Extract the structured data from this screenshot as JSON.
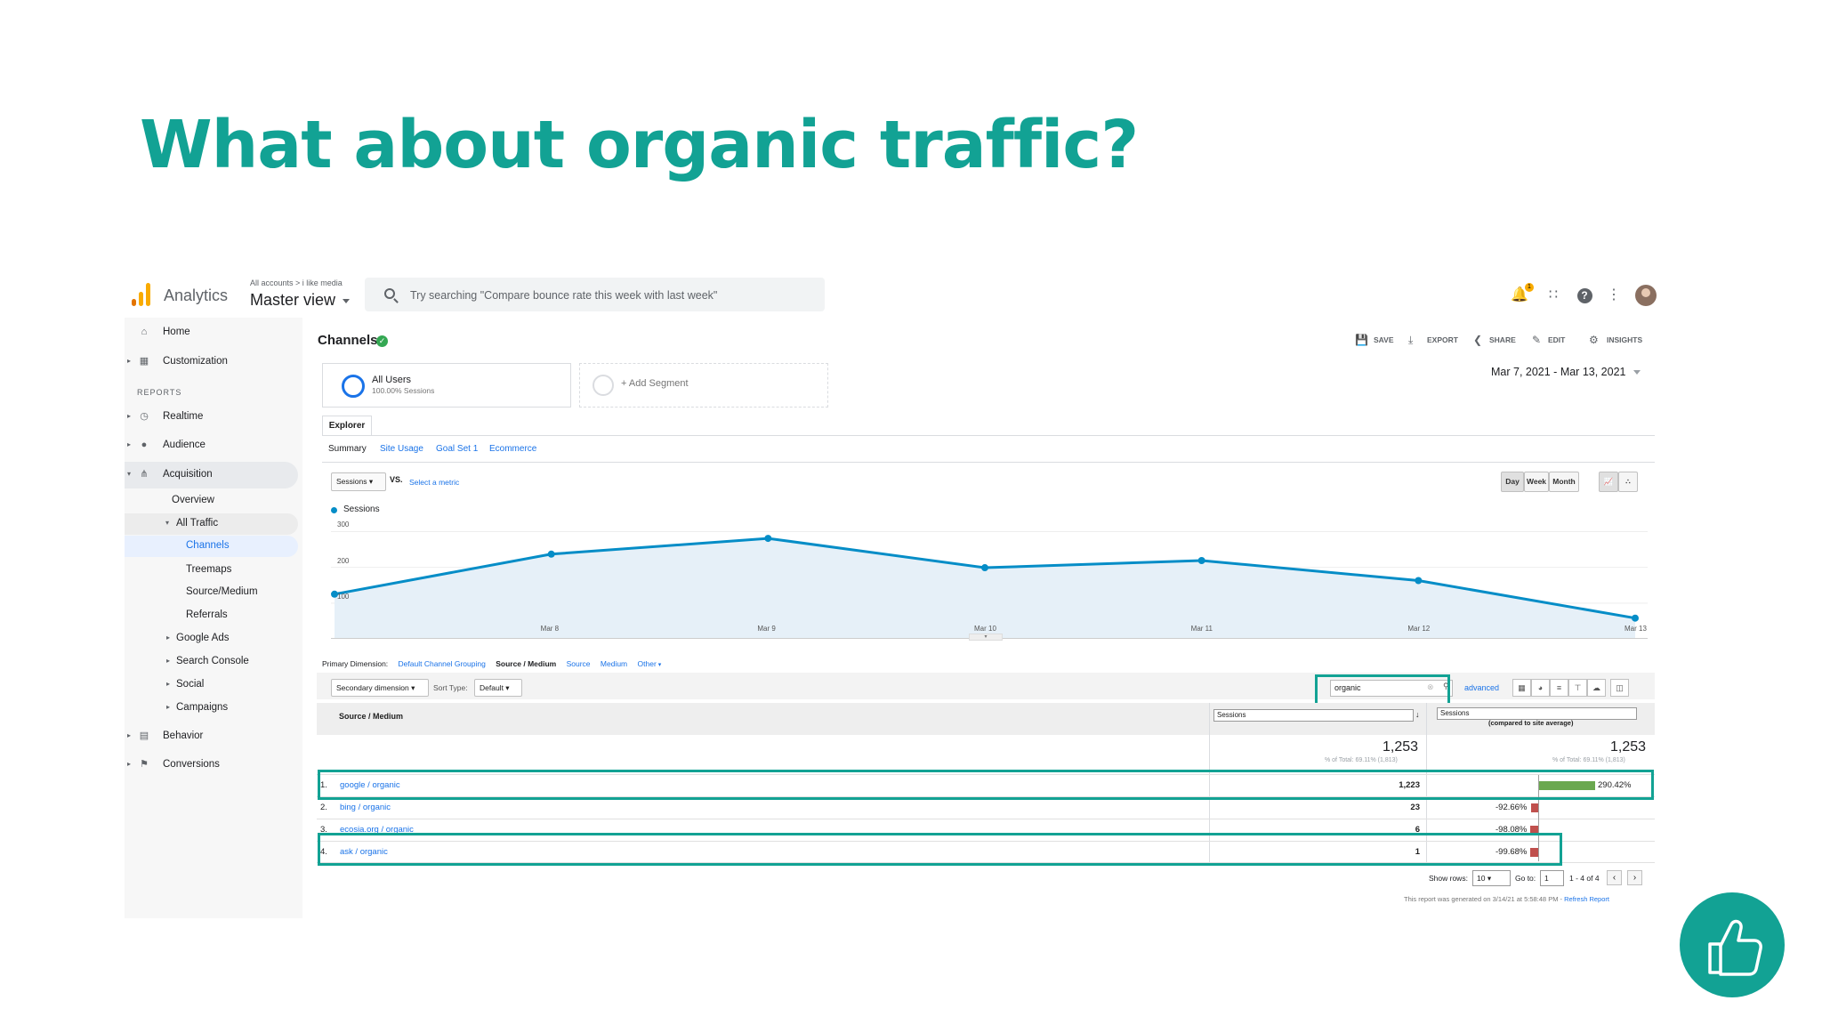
{
  "slide": {
    "title": "What about organic traffic?",
    "accent_color": "#12a294",
    "reaction_icon": "thumbs-up-icon"
  },
  "app": {
    "name": "Analytics",
    "breadcrumb": "All accounts > i like media",
    "view": "Master view",
    "search_placeholder": "Try searching \"Compare bounce rate this week with last week\"",
    "notification_count": "1",
    "icons": [
      "bell-icon",
      "apps-grid-icon",
      "help-icon",
      "more-vert-icon",
      "avatar"
    ]
  },
  "sidebar": {
    "items": [
      {
        "label": "Home",
        "icon": "home-icon"
      },
      {
        "label": "Customization",
        "icon": "dashboard-icon"
      }
    ],
    "section_label": "REPORTS",
    "reports": [
      {
        "label": "Realtime",
        "icon": "clock-icon"
      },
      {
        "label": "Audience",
        "icon": "person-icon"
      },
      {
        "label": "Acquisition",
        "icon": "acquisition-icon"
      }
    ],
    "acquisition_children": {
      "overview": "Overview",
      "all_traffic": "All Traffic",
      "channels": "Channels",
      "treemaps": "Treemaps",
      "source_medium": "Source/Medium",
      "referrals": "Referrals",
      "google_ads": "Google Ads",
      "search_console": "Search Console",
      "social": "Social",
      "campaigns": "Campaigns"
    },
    "behavior": "Behavior",
    "conversions": "Conversions"
  },
  "page": {
    "title": "Channels",
    "actions": {
      "save": "SAVE",
      "export": "EXPORT",
      "share": "SHARE",
      "edit": "EDIT",
      "insights": "INSIGHTS"
    },
    "segment": {
      "name": "All Users",
      "sub": "100.00% Sessions",
      "add": "+ Add Segment"
    },
    "date_range": "Mar 7, 2021 - Mar 13, 2021",
    "tab": "Explorer",
    "subtabs": [
      "Summary",
      "Site Usage",
      "Goal Set 1",
      "Ecommerce"
    ],
    "metric": "Sessions",
    "vs": "VS.",
    "select_metric": "Select a metric",
    "granularity": [
      "Day",
      "Week",
      "Month"
    ]
  },
  "chart_data": {
    "type": "area",
    "series": [
      {
        "name": "Sessions",
        "values": [
          125,
          237,
          281,
          199,
          219,
          163,
          58
        ]
      }
    ],
    "x": [
      "",
      "Mar 8",
      "Mar 9",
      "Mar 10",
      "Mar 11",
      "Mar 12",
      "Mar 13"
    ],
    "yticks": [
      "300",
      "200",
      "100"
    ],
    "ylim": [
      0,
      300
    ],
    "color": "#058dc7",
    "fill": "#e6f0f8"
  },
  "table": {
    "primary_dimension_label": "Primary Dimension:",
    "dimensions": [
      "Default Channel Grouping",
      "Source / Medium",
      "Source",
      "Medium",
      "Other"
    ],
    "secondary_dimension": "Secondary dimension",
    "sort_type_label": "Sort Type:",
    "sort_type": "Default",
    "filter_value": "organic",
    "advanced": "advanced",
    "dim_header": "Source / Medium",
    "metric_header": "Sessions",
    "compare_header": "Sessions",
    "compare_note": "(compared to site average)",
    "total": "1,253",
    "total_sub": "% of Total: 69.11% (1,813)",
    "rows": [
      {
        "n": "1.",
        "source": "google / organic",
        "sessions": "1,223",
        "pct": "290.42%",
        "pct_value": 290.42
      },
      {
        "n": "2.",
        "source": "bing / organic",
        "sessions": "23",
        "pct": "-92.66%",
        "pct_value": -92.66
      },
      {
        "n": "3.",
        "source": "ecosia.org / organic",
        "sessions": "6",
        "pct": "-98.08%",
        "pct_value": -98.08
      },
      {
        "n": "4.",
        "source": "ask / organic",
        "sessions": "1",
        "pct": "-99.68%",
        "pct_value": -99.68
      }
    ],
    "pager": {
      "show_rows": "Show rows:",
      "rows_value": "10",
      "goto": "Go to:",
      "goto_value": "1",
      "range": "1 - 4 of 4"
    },
    "generated": "This report was generated on 3/14/21 at 5:58:48 PM - ",
    "refresh": "Refresh Report"
  }
}
